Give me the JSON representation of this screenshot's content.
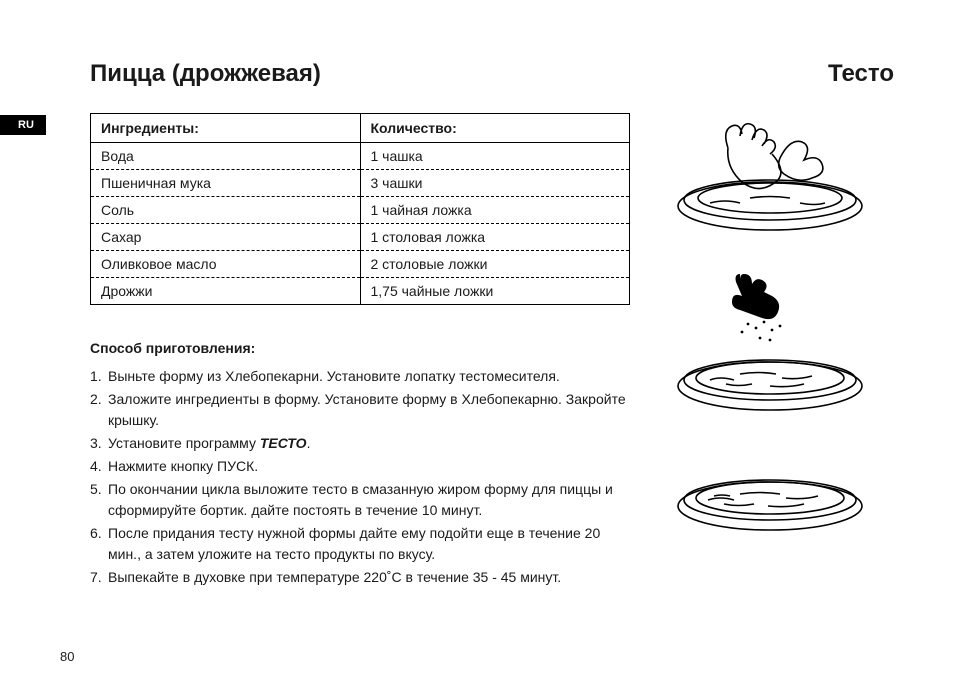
{
  "lang_tab": "RU",
  "title_left": "Пицца (дрожжевая)",
  "title_right": "Тесто",
  "ingredients_table": {
    "header_ingredient": "Ингредиенты:",
    "header_quantity": "Количество:",
    "rows": [
      {
        "name": "Вода",
        "qty": "1 чашка"
      },
      {
        "name": "Пшеничная мука",
        "qty": "3 чашки"
      },
      {
        "name": "Соль",
        "qty": "1 чайная ложка"
      },
      {
        "name": "Сахар",
        "qty": "1 столовая ложка"
      },
      {
        "name": "Оливковое масло",
        "qty": "2 столовые ложки"
      },
      {
        "name": "Дрожжи",
        "qty": "1,75 чайные ложки"
      }
    ]
  },
  "instructions_heading": "Способ приготовления:",
  "program_word": "ТЕСТО",
  "steps": [
    "Выньте форму из Хлебопекарни. Установите лопатку тестомесителя.",
    "Заложите ингредиенты в форму. Установите форму в Хлебопекарню. Закройте крышку.",
    "Установите программу {PROGRAM}.",
    "Нажмите кнопку ПУСК.",
    "По окончании цикла выложите тесто в смазанную жиром форму для пиццы и сформируйте бортик. дайте постоять в течение 10 минут.",
    "После придания тесту нужной формы дайте ему подойти еще в течение 20 мин., а затем уложите на тесто продукты по вкусу.",
    "Выпекайте в духовке при температуре 220˚С в течение 35 - 45 минут."
  ],
  "page_number": "80",
  "colors": {
    "text": "#1a1a1a",
    "background": "#ffffff",
    "tab_bg": "#000000",
    "tab_fg": "#ffffff",
    "border": "#000000"
  },
  "typography": {
    "title_fontsize_pt": 18,
    "body_fontsize_pt": 10.5,
    "font_family": "Arial"
  },
  "illustrations": [
    {
      "name": "hand-press-dough-icon",
      "desc": "Two hands pressing dough into round pan"
    },
    {
      "name": "hand-sprinkle-icon",
      "desc": "Hand sprinkling toppings onto pizza in pan"
    },
    {
      "name": "pizza-in-pan-icon",
      "desc": "Finished pizza dough with toppings in pan"
    }
  ]
}
